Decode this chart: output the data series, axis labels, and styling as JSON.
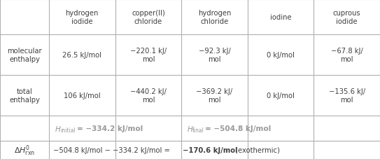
{
  "col_headers": [
    "hydrogen\niodide",
    "copper(II)\nchloride",
    "hydrogen\nchloride",
    "iodine",
    "cuprous\niodide"
  ],
  "mol_enthalpy": [
    "26.5 kJ/mol",
    "−220.1 kJ/\nmol",
    "−92.3 kJ/\nmol",
    "0 kJ/mol",
    "−67.8 kJ/\nmol"
  ],
  "tot_enthalpy": [
    "106 kJ/mol",
    "−440.2 kJ/\nmol",
    "−369.2 kJ/\nmol",
    "0 kJ/mol",
    "−135.6 kJ/\nmol"
  ],
  "bg_color": "#ffffff",
  "line_color": "#b0b0b0",
  "text_color": "#404040",
  "gray_text": "#999999"
}
